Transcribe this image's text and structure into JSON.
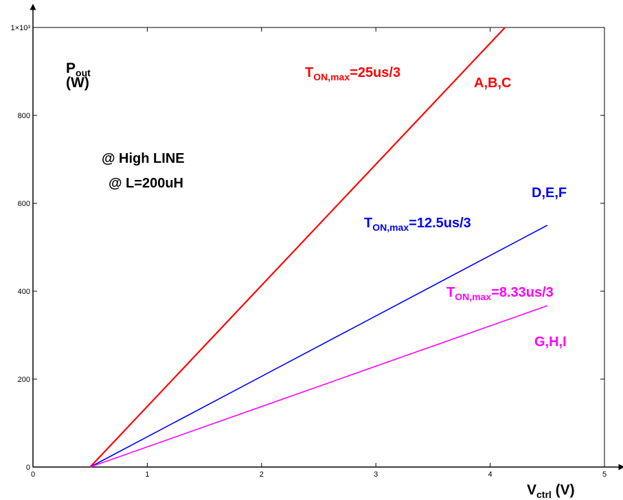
{
  "chart_data": {
    "type": "line",
    "xlim": [
      0,
      5
    ],
    "ylim": [
      0,
      1000
    ],
    "x_ticks": [
      "0",
      "1",
      "2",
      "3",
      "4",
      "5"
    ],
    "y_ticks": [
      "0",
      "200",
      "400",
      "600",
      "800",
      "1×10³"
    ],
    "y_label": {
      "main": "P",
      "sub": "out",
      "unit": "(W)"
    },
    "x_label": {
      "main": "V",
      "sub": "ctrl",
      "unit": " (V)"
    },
    "grid": false,
    "notes": [
      "@  High LINE",
      "@  L=200uH"
    ],
    "series": [
      {
        "color": "#ff0000",
        "x": [
          0.5,
          4.13
        ],
        "y": [
          0,
          1000
        ],
        "label_main": "T",
        "label_sub": "ON,max",
        "label_rest": "=25us/3",
        "group": "A,B,C"
      },
      {
        "color": "#0000ff",
        "x": [
          0.5,
          4.5
        ],
        "y": [
          0,
          550
        ],
        "label_main": "T",
        "label_sub": "ON,max",
        "label_rest": "=12.5us/3",
        "group": "D,E,F"
      },
      {
        "color": "#ff00ff",
        "x": [
          0.5,
          4.5
        ],
        "y": [
          0,
          367
        ],
        "label_main": "T",
        "label_sub": "ON,max",
        "label_rest": "=8.33us/3",
        "group": "G,H,I"
      }
    ]
  }
}
